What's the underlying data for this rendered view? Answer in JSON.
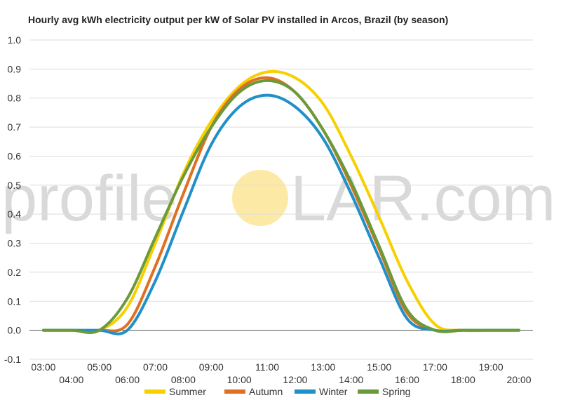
{
  "chart_data": {
    "type": "line",
    "title": "Hourly avg kWh electricity output per kW of Solar PV installed in Arcos, Brazil (by season)",
    "watermark": {
      "left": "profile",
      "right": "LAR.com",
      "sun_color": "#fde9a6"
    },
    "ylim": [
      -0.1,
      1.0
    ],
    "y_ticks": [
      "1.0",
      "0.9",
      "0.8",
      "0.7",
      "0.6",
      "0.5",
      "0.4",
      "0.3",
      "0.2",
      "0.1",
      "0.0",
      "-0.1"
    ],
    "y_tick_values": [
      1.0,
      0.9,
      0.8,
      0.7,
      0.6,
      0.5,
      0.4,
      0.3,
      0.2,
      0.1,
      0.0,
      -0.1
    ],
    "x_ticks_upper": [
      "03:00",
      "05:00",
      "07:00",
      "09:00",
      "11:00",
      "13:00",
      "15:00",
      "17:00",
      "19:00"
    ],
    "x_ticks_upper_values": [
      3,
      5,
      7,
      9,
      11,
      13,
      15,
      17,
      19
    ],
    "x_ticks_lower": [
      "04:00",
      "06:00",
      "08:00",
      "10:00",
      "12:00",
      "14:00",
      "16:00",
      "18:00",
      "20:00"
    ],
    "x_ticks_lower_values": [
      4,
      6,
      8,
      10,
      12,
      14,
      16,
      18,
      20
    ],
    "xlim": [
      2.5,
      20.5
    ],
    "x": [
      3,
      4,
      5,
      6,
      7,
      8,
      9,
      10,
      11,
      12,
      13,
      14,
      15,
      16,
      17,
      18,
      19,
      20
    ],
    "legend_position": "bottom",
    "series": [
      {
        "name": "Summer",
        "color": "#f7d000",
        "values": [
          0.0,
          0.0,
          0.0,
          0.08,
          0.3,
          0.54,
          0.72,
          0.84,
          0.89,
          0.87,
          0.78,
          0.6,
          0.39,
          0.17,
          0.02,
          0.0,
          0.0,
          0.0
        ]
      },
      {
        "name": "Autumn",
        "color": "#e07020",
        "values": [
          0.0,
          0.0,
          0.0,
          0.02,
          0.22,
          0.47,
          0.7,
          0.83,
          0.87,
          0.82,
          0.69,
          0.5,
          0.28,
          0.06,
          0.0,
          0.0,
          0.0,
          0.0
        ]
      },
      {
        "name": "Winter",
        "color": "#2190c8",
        "values": [
          0.0,
          0.0,
          0.0,
          0.0,
          0.17,
          0.41,
          0.64,
          0.77,
          0.81,
          0.77,
          0.66,
          0.47,
          0.25,
          0.04,
          0.0,
          0.0,
          0.0,
          0.0
        ]
      },
      {
        "name": "Spring",
        "color": "#6a9a3a",
        "values": [
          0.0,
          0.0,
          0.0,
          0.11,
          0.32,
          0.53,
          0.7,
          0.82,
          0.86,
          0.82,
          0.69,
          0.51,
          0.29,
          0.07,
          0.0,
          0.0,
          0.0,
          0.0
        ]
      }
    ]
  }
}
